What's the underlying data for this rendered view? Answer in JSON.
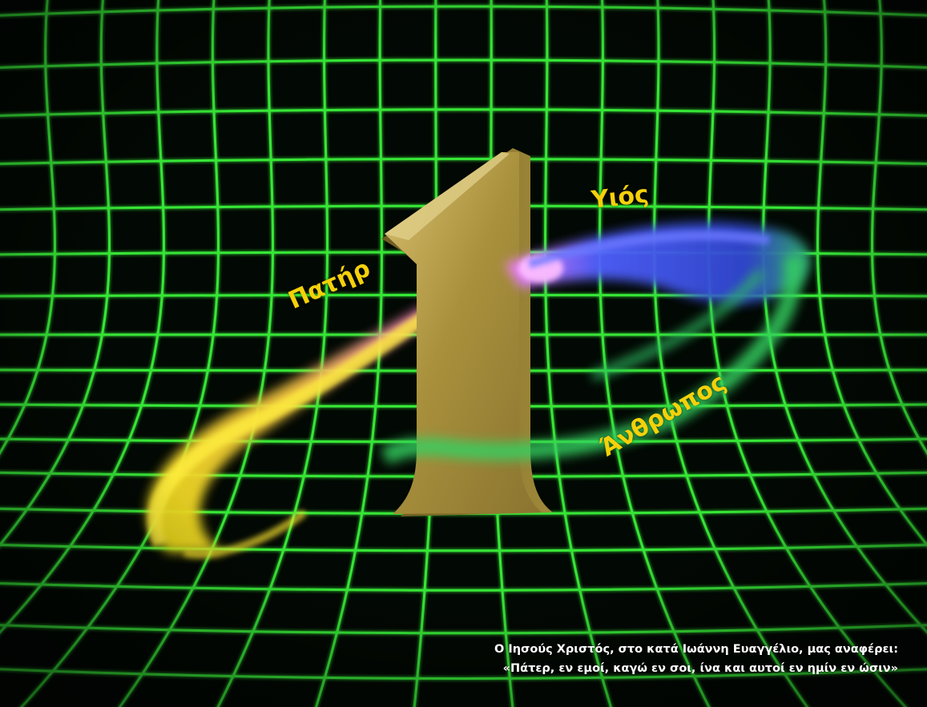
{
  "scene": {
    "description_icon": "trinity-grid-number-one",
    "colors": {
      "background": "#020803",
      "grid": "#3cff3c",
      "numeral": "#b8a04a",
      "label": "#f5d10a",
      "ribbon_yellow": "#f0e020",
      "ribbon_pink": "#e060d0",
      "ribbon_blue": "#4050ff",
      "ribbon_green": "#30d060",
      "caption": "#ffffff"
    }
  },
  "labels": {
    "son": "Υιός",
    "father": "Πατήρ",
    "man": "Άνθρωπος"
  },
  "caption": {
    "line1": "Ο Ιησούς Χριστός, στο κατά Ιωάννη Ευαγγέλιο, μας αναφέρει:",
    "line2": "«Πάτερ, εν εμοί, καγώ εν σοι, ίνα και αυτοί εν ημίν εν ώσιν»"
  }
}
